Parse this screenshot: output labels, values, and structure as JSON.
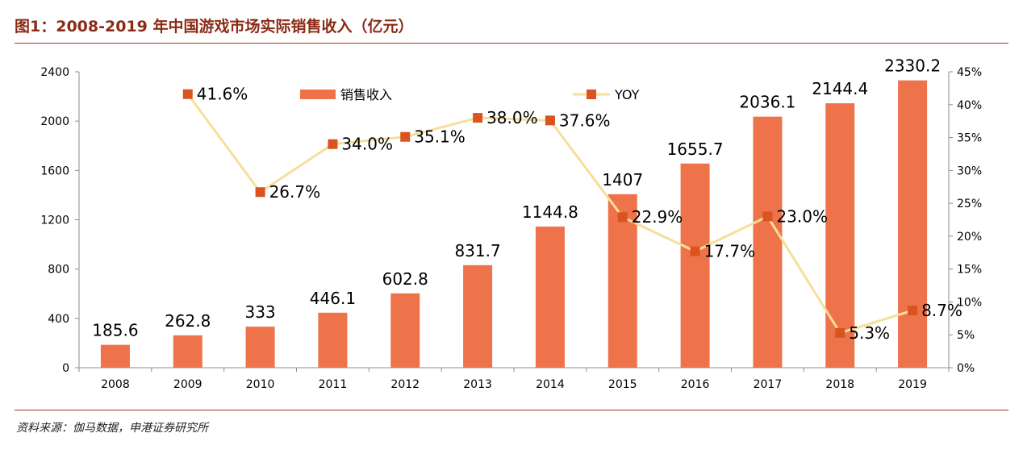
{
  "title": "图1：2008-2019 年中国游戏市场实际销售收入（亿元）",
  "source": "资料来源：伽马数据，申港证券研究所",
  "colors": {
    "bar": "#ee734a",
    "line": "#f5df9a",
    "marker": "#d9541e",
    "title": "#8b2b16",
    "rule": "#a8341d"
  },
  "chart_data": {
    "type": "bar",
    "categories": [
      "2008",
      "2009",
      "2010",
      "2011",
      "2012",
      "2013",
      "2014",
      "2015",
      "2016",
      "2017",
      "2018",
      "2019"
    ],
    "series": [
      {
        "name": "销售收入",
        "type": "bar",
        "axis": "left",
        "values": [
          185.6,
          262.8,
          333,
          446.1,
          602.8,
          831.7,
          1144.8,
          1407,
          1655.7,
          2036.1,
          2144.4,
          2330.2
        ],
        "labels": [
          "185.6",
          "262.8",
          "333",
          "446.1",
          "602.8",
          "831.7",
          "1144.8",
          "1407",
          "1655.7",
          "2036.1",
          "2144.4",
          "2330.2"
        ]
      },
      {
        "name": "YOY",
        "type": "line",
        "axis": "right",
        "values": [
          null,
          41.6,
          26.7,
          34.0,
          35.1,
          38.0,
          37.6,
          22.9,
          17.7,
          23.0,
          5.3,
          8.7
        ],
        "labels": [
          "",
          "41.6%",
          "26.7%",
          "34.0%",
          "35.1%",
          "38.0%",
          "37.6%",
          "22.9%",
          "17.7%",
          "23.0%",
          "5.3%",
          "8.7%"
        ]
      }
    ],
    "y_left": {
      "min": 0,
      "max": 2400,
      "ticks": [
        "0",
        "400",
        "800",
        "1200",
        "1600",
        "2000",
        "2400"
      ]
    },
    "y_right": {
      "min": 0,
      "max": 45,
      "ticks": [
        "0%",
        "5%",
        "10%",
        "15%",
        "20%",
        "25%",
        "30%",
        "35%",
        "40%",
        "45%"
      ]
    },
    "legend": {
      "placement": "top-center",
      "items": [
        "销售收入",
        "YOY"
      ]
    },
    "grid": false
  }
}
